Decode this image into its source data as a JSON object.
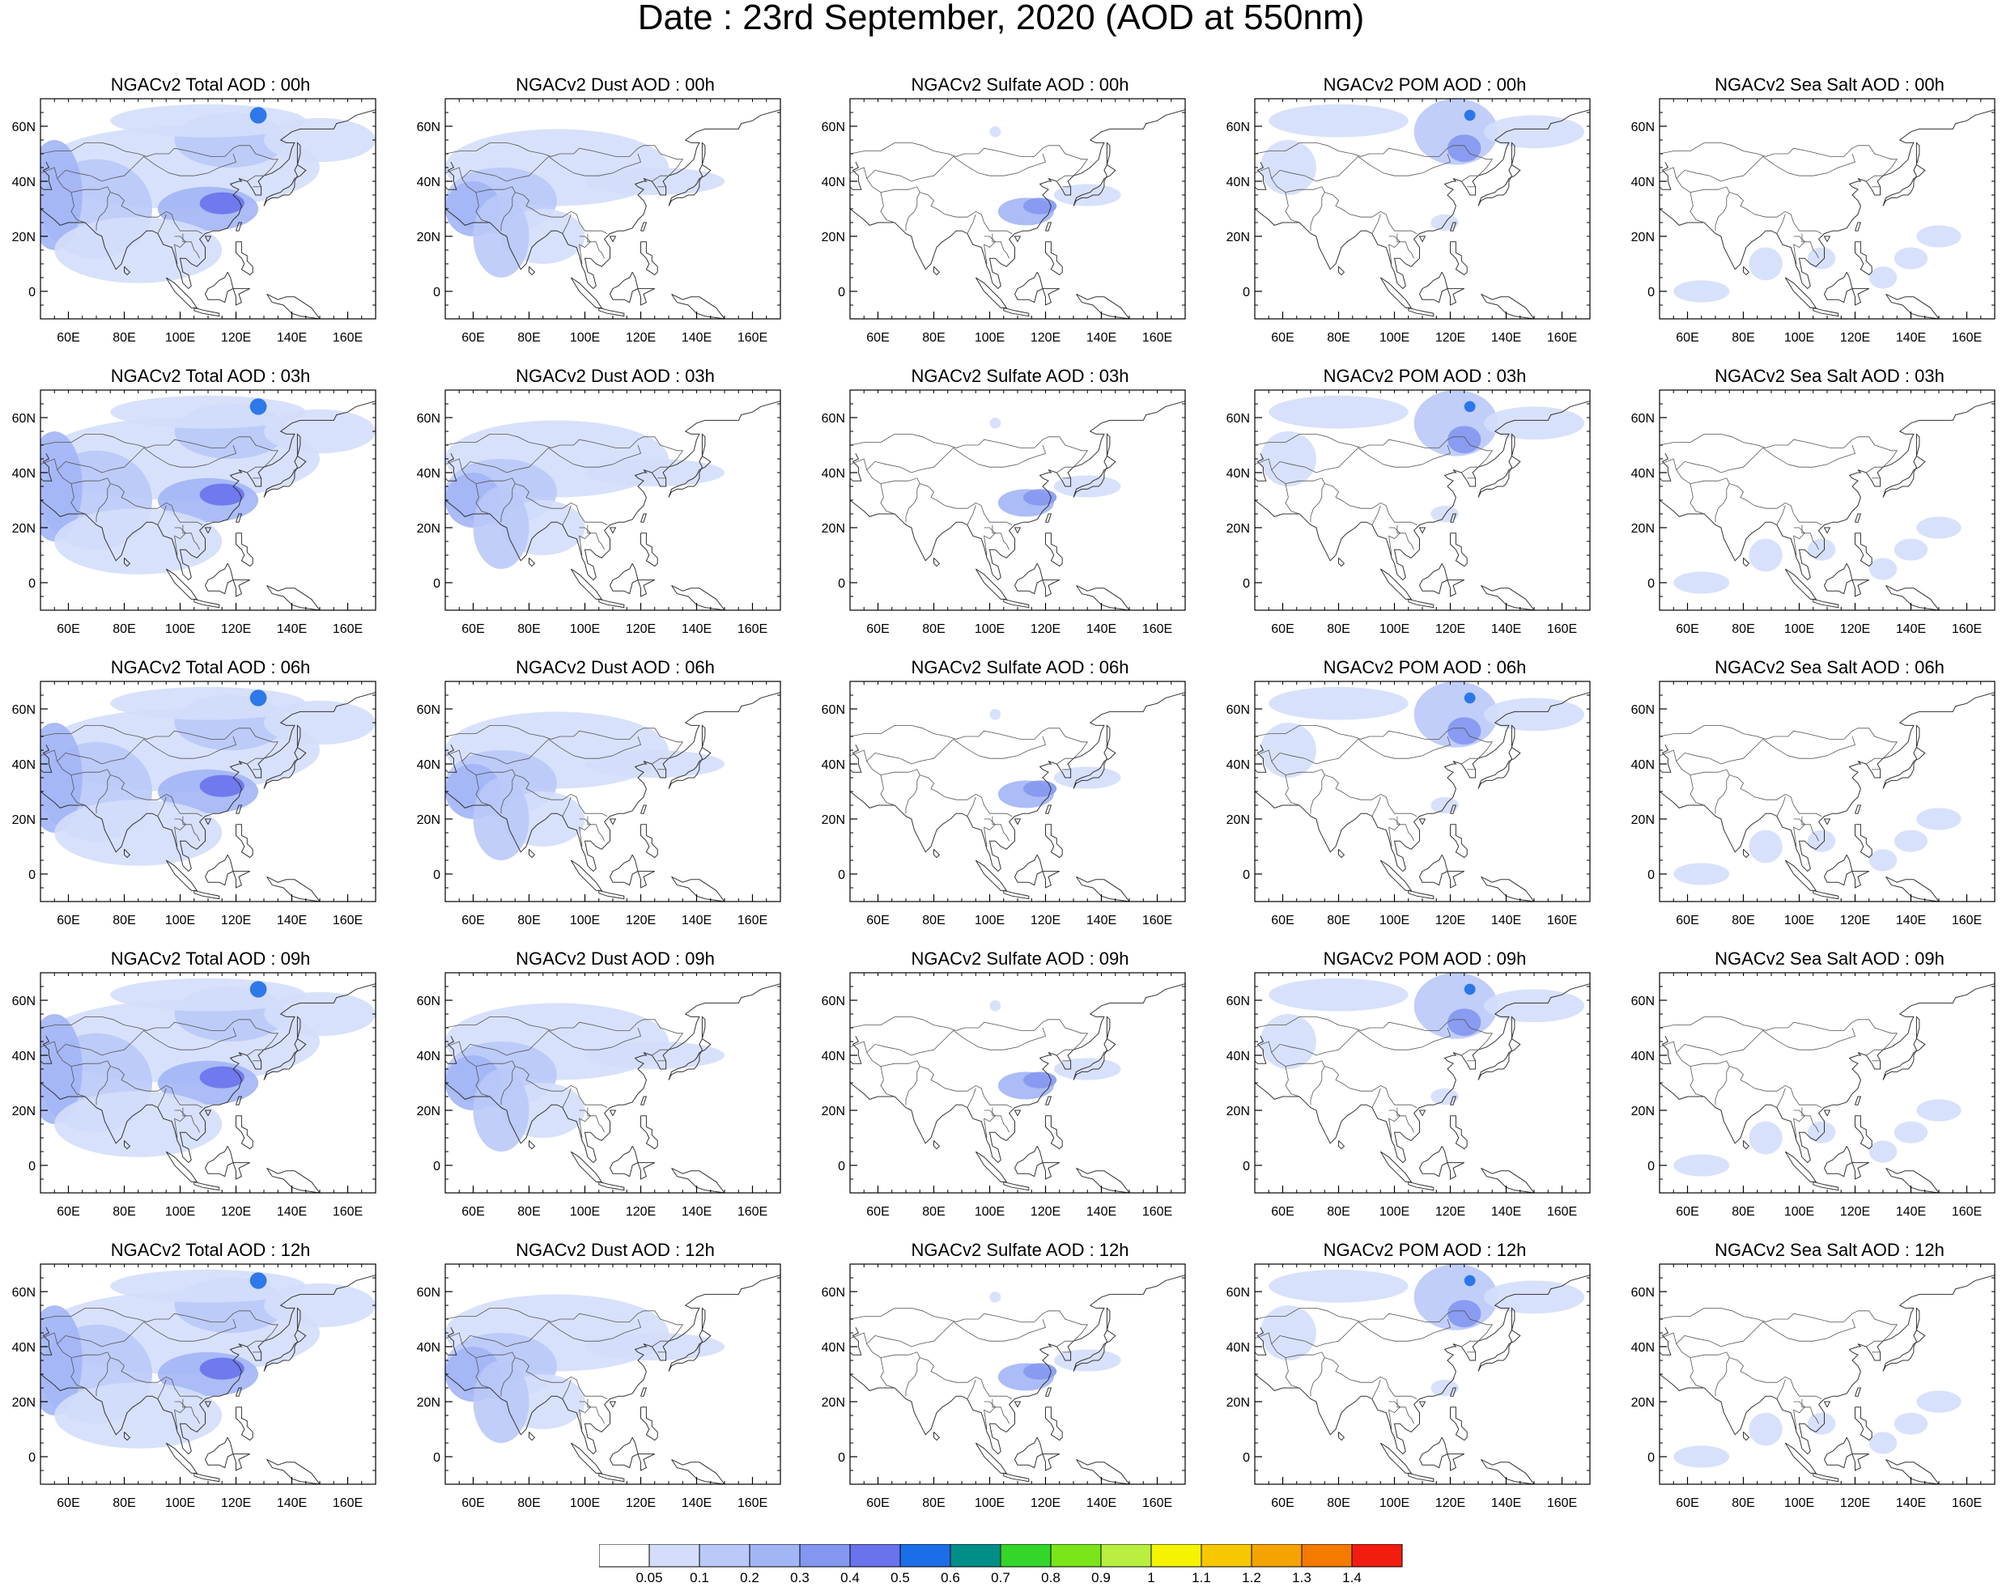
{
  "title": "Date : 23rd  September, 2020 (AOD at 550nm)",
  "rows": [
    {
      "time": "00h",
      "titles": [
        "NGACv2 Total AOD : 00h",
        "NGACv2 Dust AOD : 00h",
        "NGACv2 Sulfate AOD : 00h",
        "NGACv2 POM AOD : 00h",
        "NGACv2 Sea Salt AOD : 00h"
      ]
    },
    {
      "time": "03h",
      "titles": [
        "NGACv2 Total AOD : 03h",
        "NGACv2 Dust AOD : 03h",
        "NGACv2 Sulfate AOD : 03h",
        "NGACv2 POM AOD : 03h",
        "NGACv2 Sea Salt AOD : 03h"
      ]
    },
    {
      "time": "06h",
      "titles": [
        "NGACv2 Total AOD : 06h",
        "NGACv2 Dust AOD : 06h",
        "NGACv2 Sulfate AOD : 06h",
        "NGACv2 POM AOD : 06h",
        "NGACv2 Sea Salt AOD : 06h"
      ]
    },
    {
      "time": "09h",
      "titles": [
        "NGACv2 Total AOD : 09h",
        "NGACv2 Dust AOD : 09h",
        "NGACv2 Sulfate AOD : 09h",
        "NGACv2 POM AOD : 09h",
        "NGACv2 Sea Salt  AOD : 09h"
      ]
    },
    {
      "time": "12h",
      "titles": [
        "NGACv2 Total AOD  : 12h",
        "NGACv2 Dust AOD : 12h",
        "NGACv2 Sulfate AOD : 12h",
        "NGACv2 POM  AOD : 12h",
        "NGACv2 Sea Salt  AOD : 12h"
      ]
    }
  ],
  "map_extent": {
    "lon_min": 50,
    "lon_max": 170,
    "lat_min": -10,
    "lat_max": 70
  },
  "x_ticks": [
    {
      "value": 60,
      "label": "60E"
    },
    {
      "value": 80,
      "label": "80E"
    },
    {
      "value": 100,
      "label": "100E"
    },
    {
      "value": 120,
      "label": "120E"
    },
    {
      "value": 140,
      "label": "140E"
    },
    {
      "value": 160,
      "label": "160E"
    }
  ],
  "y_ticks": [
    {
      "value": 60,
      "label": "60N"
    },
    {
      "value": 40,
      "label": "40N"
    },
    {
      "value": 20,
      "label": "20N"
    },
    {
      "value": 0,
      "label": "0"
    }
  ],
  "colorbar": {
    "colors": [
      "#ffffff",
      "#d4defb",
      "#bac9f8",
      "#a2b5f5",
      "#8497f0",
      "#6a72ec",
      "#1c6de8",
      "#008f88",
      "#33d62b",
      "#7ae518",
      "#b9ef40",
      "#f4f400",
      "#f7c800",
      "#f5a300",
      "#f47a00",
      "#f21d10"
    ],
    "labels": [
      "0.05",
      "0.1",
      "0.2",
      "0.3",
      "0.4",
      "0.5",
      "0.6",
      "0.7",
      "0.8",
      "0.9",
      "1",
      "1.1",
      "1.2",
      "1.3",
      "1.4"
    ]
  }
}
